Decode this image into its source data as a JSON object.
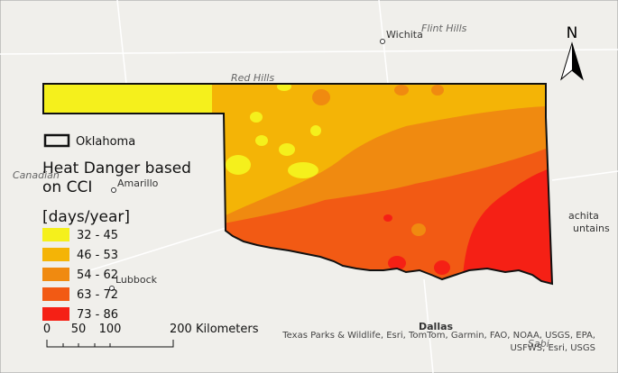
{
  "map": {
    "places": [
      "Wichita",
      "Flint Hills",
      "Red Hills",
      "Canadian",
      "Amarillo",
      "Lubbock",
      "Dallas",
      "Sabi",
      "achita",
      "untains"
    ],
    "north_arrow": "N",
    "legend": {
      "boundary": "Oklahoma",
      "title_lines": [
        "Heat Danger based",
        "on CCI"
      ],
      "unit": "[days/year]",
      "classes": [
        {
          "label": "32 - 45",
          "color": "#f5f01c"
        },
        {
          "label": "46 - 53",
          "color": "#f4b406"
        },
        {
          "label": "54 - 62",
          "color": "#f08a10"
        },
        {
          "label": "63 - 72",
          "color": "#f25a14"
        },
        {
          "label": "73 - 86",
          "color": "#f52015"
        }
      ]
    },
    "scale_bar": [
      "0",
      "50",
      "100",
      "200 Kilometers"
    ],
    "attribution_lines": [
      "Texas Parks & Wildlife, Esri, TomTom, Garmin, FAO, NOAA, USGS, EPA,",
      "USFWS, Esri, USGS"
    ]
  }
}
